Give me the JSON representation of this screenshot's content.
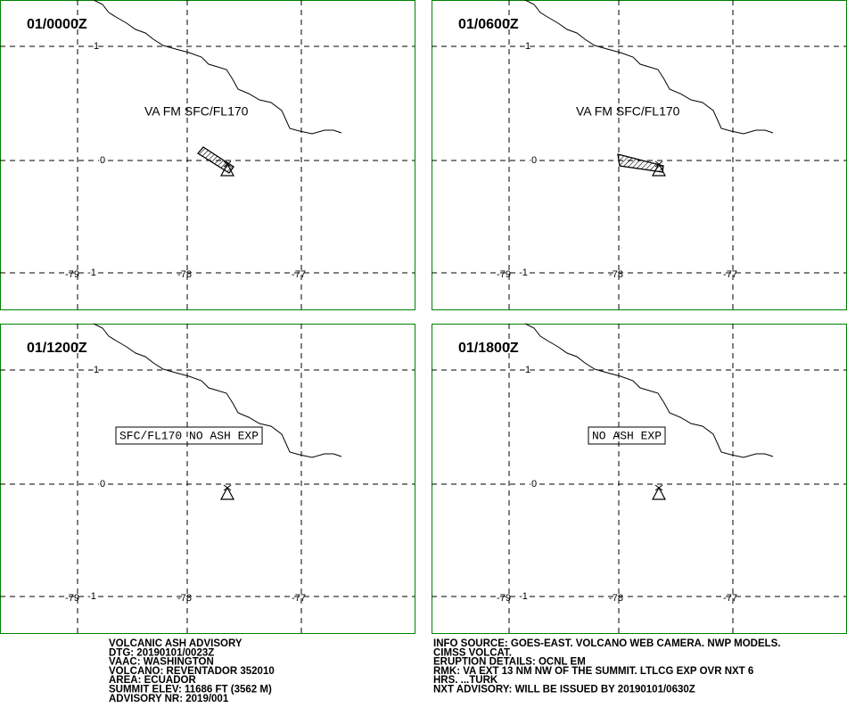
{
  "grid": {
    "lat_labels": [
      "1",
      "0",
      "-1"
    ],
    "lon_labels": [
      "-79",
      "-78",
      "-77"
    ]
  },
  "panels": [
    {
      "time": "01/0000Z",
      "annotation": "VA FM SFC/FL170"
    },
    {
      "time": "01/0600Z",
      "annotation": "VA FM SFC/FL170"
    },
    {
      "time": "01/1200Z",
      "annotation_boxed": "SFC/FL170 NO ASH EXP"
    },
    {
      "time": "01/1800Z",
      "annotation_boxed": "NO ASH EXP"
    }
  ],
  "advisory_left": [
    "VOLCANIC ASH ADVISORY",
    "DTG: 20190101/0023Z",
    "VAAC: WASHINGTON",
    "VOLCANO: REVENTADOR 352010",
    "AREA: ECUADOR",
    "SUMMIT ELEV: 11686 FT (3562 M)",
    "ADVISORY NR: 2019/001"
  ],
  "advisory_right": [
    "INFO SOURCE: GOES-EAST. VOLCANO WEB CAMERA. NWP MODELS.",
    "CIMSS VOLCAT.",
    "ERUPTION DETAILS: OCNL EM",
    "RMK: VA EXT 13 NM NW OF THE SUMMIT. LTLCG EXP OVR NXT 6",
    "HRS. ...TURK",
    "NXT ADVISORY: WILL BE ISSUED BY 20190101/0630Z"
  ]
}
